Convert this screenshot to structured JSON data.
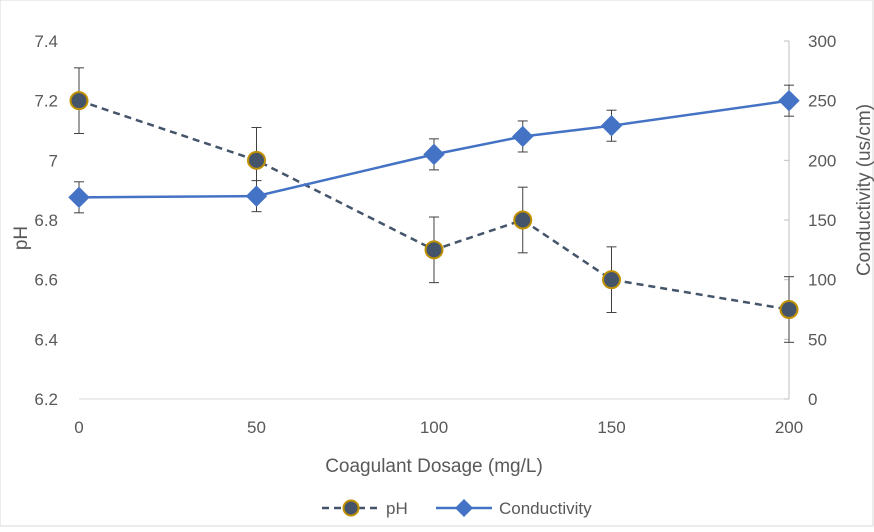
{
  "chart_data": {
    "type": "line",
    "x": [
      0,
      50,
      100,
      125,
      150,
      200
    ],
    "xlabel": "Coagulant Dosage (mg/L)",
    "ylabel": "pH",
    "y2label": "Conductivity (us/cm)",
    "xlim": [
      0,
      200
    ],
    "ylim": [
      6.2,
      7.4
    ],
    "y2lim": [
      0,
      300
    ],
    "x_ticks": [
      "0",
      "50",
      "100",
      "150",
      "200"
    ],
    "y_ticks": [
      "6.2",
      "6.4",
      "6.6",
      "6.8",
      "7",
      "7.2",
      "7.4"
    ],
    "y2_ticks": [
      "0",
      "50",
      "100",
      "150",
      "200",
      "250",
      "300"
    ],
    "grid": false,
    "legend": "bottom",
    "series": [
      {
        "name": "pH",
        "axis": "left",
        "values": [
          7.2,
          7.0,
          6.7,
          6.8,
          6.6,
          6.5
        ],
        "error": [
          0.11,
          0.11,
          0.11,
          0.11,
          0.11,
          0.11
        ],
        "color": "#44546A",
        "marker_fill": "#44546A",
        "marker_edge": "#BF9000",
        "line_style": "dashed",
        "marker": "circle"
      },
      {
        "name": "Conductivity",
        "axis": "right",
        "values": [
          169,
          170,
          205,
          220,
          229,
          250
        ],
        "error": [
          13,
          13,
          13,
          13,
          13,
          13
        ],
        "color": "#4472C4",
        "line_style": "solid",
        "marker": "diamond"
      }
    ]
  }
}
